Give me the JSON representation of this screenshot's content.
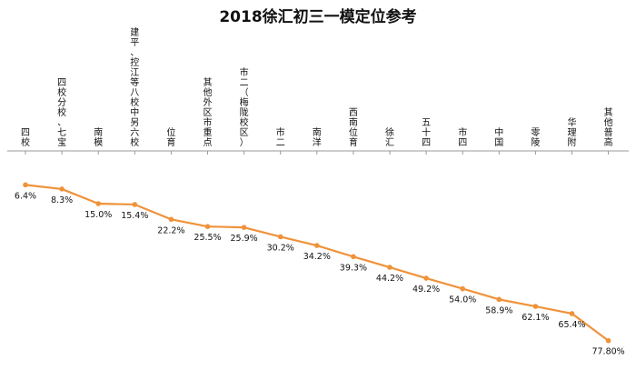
{
  "chart_data": {
    "type": "line",
    "title": "2018徐汇初三一模定位参考",
    "xlabel": "",
    "ylabel": "",
    "categories": [
      "四校",
      "四校分校、七宝",
      "南模",
      "建平、控江等八校中另六校",
      "位育",
      "其他外区市重点",
      "市二（梅陇校区）",
      "市二",
      "南洋",
      "西南位育",
      "徐汇",
      "五十四",
      "市四",
      "中国",
      "零陵",
      "华理附",
      "其他普高"
    ],
    "series": [
      {
        "values": [
          6.4,
          8.3,
          15.0,
          15.4,
          22.2,
          25.5,
          25.9,
          30.2,
          34.2,
          39.3,
          44.2,
          49.2,
          54.0,
          58.9,
          62.1,
          65.4,
          77.8
        ]
      }
    ],
    "value_labels": [
      "6.4%",
      "8.3%",
      "15.0%",
      "15.4%",
      "22.2%",
      "25.5%",
      "25.9%",
      "30.2%",
      "34.2%",
      "39.3%",
      "44.2%",
      "49.2%",
      "54.0%",
      "58.9%",
      "62.1%",
      "65.4%",
      "77.80%"
    ],
    "ylim": [
      0,
      80
    ],
    "y_reversed": true,
    "grid": false,
    "legend": "none",
    "line_color": "#F0923A",
    "axis_color": "#999999"
  }
}
